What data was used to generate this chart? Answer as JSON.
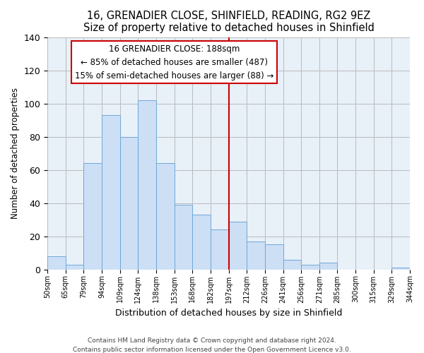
{
  "title": "16, GRENADIER CLOSE, SHINFIELD, READING, RG2 9EZ",
  "subtitle": "Size of property relative to detached houses in Shinfield",
  "xlabel": "Distribution of detached houses by size in Shinfield",
  "ylabel": "Number of detached properties",
  "bar_labels": [
    "50sqm",
    "65sqm",
    "79sqm",
    "94sqm",
    "109sqm",
    "124sqm",
    "138sqm",
    "153sqm",
    "168sqm",
    "182sqm",
    "197sqm",
    "212sqm",
    "226sqm",
    "241sqm",
    "256sqm",
    "271sqm",
    "285sqm",
    "300sqm",
    "315sqm",
    "329sqm",
    "344sqm"
  ],
  "bar_values": [
    8,
    3,
    64,
    93,
    80,
    102,
    64,
    39,
    33,
    24,
    29,
    17,
    15,
    6,
    3,
    4,
    0,
    0,
    0,
    1
  ],
  "bar_color": "#ccdff5",
  "bar_edge_color": "#6fa8d8",
  "vline_color": "#cc0000",
  "ylim": [
    0,
    140
  ],
  "yticks": [
    0,
    20,
    40,
    60,
    80,
    100,
    120,
    140
  ],
  "annotation_title": "16 GRENADIER CLOSE: 188sqm",
  "annotation_line1": "← 85% of detached houses are smaller (487)",
  "annotation_line2": "15% of semi-detached houses are larger (88) →",
  "annotation_box_color": "#ffffff",
  "annotation_box_edge": "#cc0000",
  "plot_bg_color": "#e8f0f8",
  "footer1": "Contains HM Land Registry data © Crown copyright and database right 2024.",
  "footer2": "Contains public sector information licensed under the Open Government Licence v3.0."
}
